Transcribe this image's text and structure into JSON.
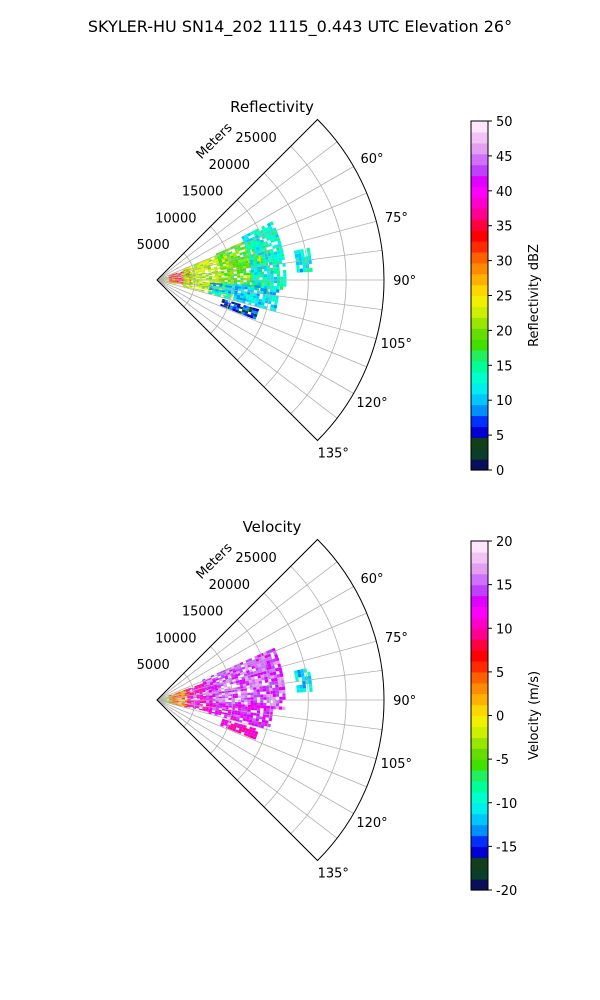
{
  "figure": {
    "suptitle": "SKYLER-HU  SN14_202  1115_0.443 UTC Elevation 26°"
  },
  "chart_data": [
    {
      "type": "heatmap",
      "subtype": "polar-sector (radar PPI)",
      "title": "Reflectivity",
      "radial_axis_label": "Meters",
      "radial_ticks": [
        5000,
        10000,
        15000,
        20000,
        25000
      ],
      "rlim": [
        0,
        30000
      ],
      "azimuth_range_deg": [
        45,
        135
      ],
      "azimuth_ticks": [
        60,
        75,
        90,
        105,
        120,
        135
      ],
      "azimuth_tick_labels": [
        "60°",
        "75°",
        "90°",
        "105°",
        "120°",
        "135°"
      ],
      "grid": true,
      "colorbar": {
        "label": "Reflectivity dBZ",
        "range": [
          0,
          50
        ],
        "ticks": [
          0,
          5,
          10,
          15,
          20,
          25,
          30,
          35,
          40,
          45,
          50
        ],
        "colors": [
          "#0a0f5a",
          "#0a3d2a",
          "#113f1a",
          "#0000d0",
          "#0030ff",
          "#0090ff",
          "#00c8ff",
          "#00eeee",
          "#00ffcc",
          "#00ff99",
          "#20f060",
          "#40e000",
          "#66dd00",
          "#99e600",
          "#ccf000",
          "#f0f000",
          "#ffd700",
          "#ffb000",
          "#ff8c00",
          "#ff6000",
          "#ff2a00",
          "#ff0000",
          "#ff0040",
          "#ff0090",
          "#ff00cc",
          "#ff00ff",
          "#e000ff",
          "#c040ff",
          "#d070ff",
          "#e59ff0",
          "#f2c4f5",
          "#fce6fb"
        ]
      },
      "echo_regions": [
        {
          "az": [
            72,
            106
          ],
          "r": [
            0,
            2400
          ],
          "value": 24
        },
        {
          "az": [
            70,
            100
          ],
          "r": [
            1600,
            4200
          ],
          "value": 34
        },
        {
          "az": [
            68,
            104
          ],
          "r": [
            3500,
            10000
          ],
          "value": 22
        },
        {
          "az": [
            66,
            96
          ],
          "r": [
            8500,
            14500
          ],
          "value": 19
        },
        {
          "az": [
            63,
            94
          ],
          "r": [
            12500,
            17000
          ],
          "value": 13
        },
        {
          "az": [
            78,
            86
          ],
          "r": [
            18500,
            20500
          ],
          "value": 12
        },
        {
          "az": [
            93,
            104
          ],
          "r": [
            7000,
            16000
          ],
          "value": 11
        },
        {
          "az": [
            106,
            111
          ],
          "r": [
            9000,
            14000
          ],
          "value": 6
        }
      ]
    },
    {
      "type": "heatmap",
      "subtype": "polar-sector (radar PPI)",
      "title": "Velocity",
      "radial_axis_label": "Meters",
      "radial_ticks": [
        5000,
        10000,
        15000,
        20000,
        25000
      ],
      "rlim": [
        0,
        30000
      ],
      "azimuth_range_deg": [
        45,
        135
      ],
      "azimuth_ticks": [
        60,
        75,
        90,
        105,
        120,
        135
      ],
      "azimuth_tick_labels": [
        "60°",
        "75°",
        "90°",
        "105°",
        "120°",
        "135°"
      ],
      "grid": true,
      "colorbar": {
        "label": "Velocity (m/s)",
        "range": [
          -20,
          20
        ],
        "ticks": [
          -20,
          -15,
          -10,
          -5,
          0,
          5,
          10,
          15,
          20
        ],
        "colors": [
          "#0a0f5a",
          "#0a3d2a",
          "#113f1a",
          "#0000d0",
          "#0030ff",
          "#0090ff",
          "#00c8ff",
          "#00eeee",
          "#00ffcc",
          "#00ff99",
          "#20f060",
          "#40e000",
          "#66dd00",
          "#99e600",
          "#ccf000",
          "#f0f000",
          "#ffd700",
          "#ffb000",
          "#ff8c00",
          "#ff6000",
          "#ff2a00",
          "#ff0000",
          "#ff0040",
          "#ff0090",
          "#ff00cc",
          "#ff00ff",
          "#e000ff",
          "#c040ff",
          "#d070ff",
          "#e59ff0",
          "#f2c4f5",
          "#fce6fb"
        ]
      },
      "echo_regions": [
        {
          "az": [
            72,
            106
          ],
          "r": [
            0,
            2400
          ],
          "value": -3
        },
        {
          "az": [
            70,
            104
          ],
          "r": [
            1600,
            4500
          ],
          "value": 4
        },
        {
          "az": [
            70,
            102
          ],
          "r": [
            4000,
            7000
          ],
          "value": 11
        },
        {
          "az": [
            66,
            94
          ],
          "r": [
            6500,
            17000
          ],
          "value": 15
        },
        {
          "az": [
            93,
            104
          ],
          "r": [
            7000,
            15000
          ],
          "value": 13
        },
        {
          "az": [
            78,
            86
          ],
          "r": [
            18500,
            20500
          ],
          "value": -11
        },
        {
          "az": [
            106,
            111
          ],
          "r": [
            9000,
            14000
          ],
          "value": 11
        }
      ]
    }
  ]
}
